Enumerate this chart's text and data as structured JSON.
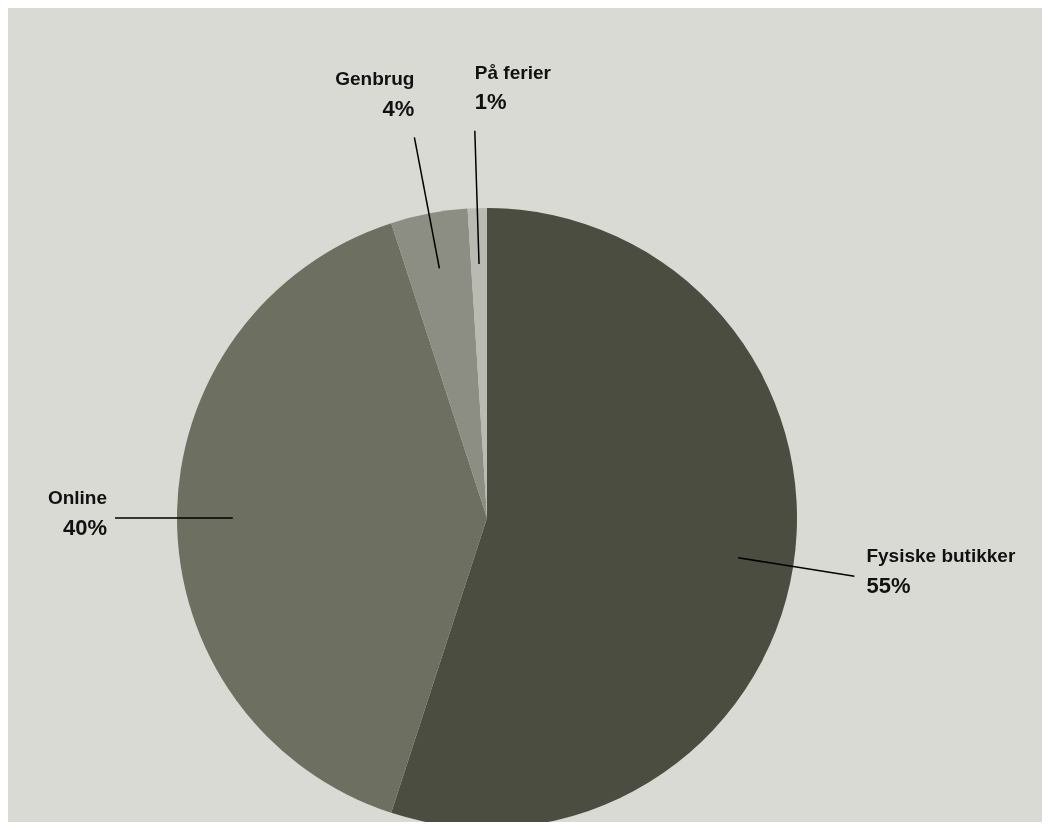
{
  "chart_data": {
    "type": "pie",
    "categories": [
      "Fysiske butikker",
      "Online",
      "Genbrug",
      "På ferier"
    ],
    "values": [
      55,
      40,
      4,
      1
    ],
    "colors": [
      "#4b4d40",
      "#6d6f61",
      "#8d8e83",
      "#b9bab2"
    ],
    "value_labels": [
      "55%",
      "40%",
      "4%",
      "1%"
    ]
  }
}
